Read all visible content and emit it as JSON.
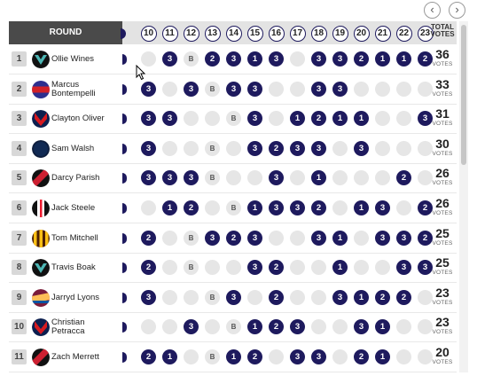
{
  "nav": {
    "prev_icon": "‹",
    "next_icon": "›"
  },
  "header": {
    "round_label": "ROUND",
    "rounds": [
      "10",
      "11",
      "12",
      "13",
      "14",
      "15",
      "16",
      "17",
      "18",
      "19",
      "20",
      "21",
      "22",
      "23"
    ],
    "total_line1": "TOTAL",
    "total_line2": "VOTES"
  },
  "colors": {
    "vote": "#1e1a5e",
    "empty": "#e6e6e6",
    "header_dark": "#4a4a4a"
  },
  "rows": [
    {
      "rank": "1",
      "name": "Ollie Wines",
      "club_icon": "port-adelaide-icon",
      "cells": [
        "e",
        "3",
        "B",
        "2",
        "3",
        "1",
        "3",
        "e",
        "3",
        "3",
        "2",
        "1",
        "1",
        "2"
      ],
      "total": "36",
      "votes_label": "VOTES"
    },
    {
      "rank": "2",
      "name": "Marcus Bontempelli",
      "club_icon": "western-bulldogs-icon",
      "cells": [
        "3",
        "e",
        "3",
        "B",
        "3",
        "3",
        "e",
        "e",
        "3",
        "3",
        "e",
        "e",
        "e",
        "e"
      ],
      "total": "33",
      "votes_label": "VOTES"
    },
    {
      "rank": "3",
      "name": "Clayton Oliver",
      "club_icon": "melbourne-icon",
      "cells": [
        "3",
        "3",
        "e",
        "e",
        "B",
        "3",
        "e",
        "1",
        "2",
        "1",
        "1",
        "e",
        "e",
        "3"
      ],
      "total": "31",
      "votes_label": "VOTES"
    },
    {
      "rank": "4",
      "name": "Sam Walsh",
      "club_icon": "carlton-icon",
      "cells": [
        "3",
        "e",
        "e",
        "B",
        "e",
        "3",
        "2",
        "3",
        "3",
        "e",
        "3",
        "e",
        "e",
        "e"
      ],
      "total": "30",
      "votes_label": "VOTES"
    },
    {
      "rank": "5",
      "name": "Darcy Parish",
      "club_icon": "essendon-icon",
      "cells": [
        "3",
        "3",
        "3",
        "B",
        "e",
        "e",
        "3",
        "e",
        "1",
        "e",
        "e",
        "e",
        "2",
        "e"
      ],
      "total": "26",
      "votes_label": "VOTES"
    },
    {
      "rank": "6",
      "name": "Jack Steele",
      "club_icon": "st-kilda-icon",
      "cells": [
        "e",
        "1",
        "2",
        "e",
        "B",
        "1",
        "3",
        "3",
        "2",
        "e",
        "1",
        "3",
        "e",
        "2"
      ],
      "total": "26",
      "votes_label": "VOTES"
    },
    {
      "rank": "7",
      "name": "Tom Mitchell",
      "club_icon": "hawthorn-icon",
      "cells": [
        "2",
        "e",
        "B",
        "3",
        "2",
        "3",
        "e",
        "e",
        "3",
        "1",
        "e",
        "3",
        "3",
        "2"
      ],
      "total": "25",
      "votes_label": "VOTES"
    },
    {
      "rank": "8",
      "name": "Travis Boak",
      "club_icon": "port-adelaide-icon",
      "cells": [
        "2",
        "e",
        "B",
        "e",
        "e",
        "3",
        "2",
        "e",
        "e",
        "1",
        "e",
        "e",
        "3",
        "3"
      ],
      "total": "25",
      "votes_label": "VOTES"
    },
    {
      "rank": "9",
      "name": "Jarryd Lyons",
      "club_icon": "brisbane-icon",
      "cells": [
        "3",
        "e",
        "e",
        "B",
        "3",
        "e",
        "2",
        "e",
        "e",
        "3",
        "1",
        "2",
        "2",
        "e"
      ],
      "total": "23",
      "votes_label": "VOTES"
    },
    {
      "rank": "10",
      "name": "Christian Petracca",
      "club_icon": "melbourne-icon",
      "cells": [
        "e",
        "e",
        "3",
        "e",
        "B",
        "1",
        "2",
        "3",
        "e",
        "e",
        "3",
        "1",
        "e",
        "e"
      ],
      "total": "23",
      "votes_label": "VOTES"
    },
    {
      "rank": "11",
      "name": "Zach Merrett",
      "club_icon": "essendon-icon",
      "cells": [
        "2",
        "1",
        "e",
        "B",
        "1",
        "2",
        "e",
        "3",
        "3",
        "e",
        "2",
        "1",
        "e",
        "e"
      ],
      "total": "20",
      "votes_label": "VOTES"
    }
  ]
}
